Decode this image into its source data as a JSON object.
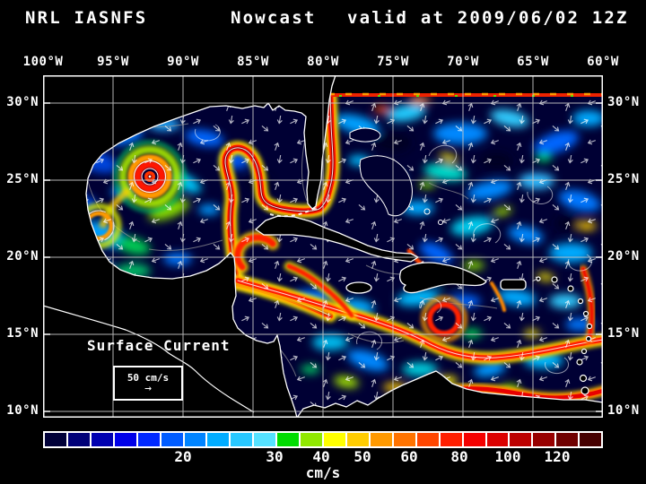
{
  "title": {
    "system": "NRL IASNFS",
    "product": "Nowcast",
    "valid": "valid at 2009/06/02 12Z"
  },
  "axes": {
    "lon_labels": [
      "100°W",
      "95°W",
      "90°W",
      "85°W",
      "80°W",
      "75°W",
      "70°W",
      "65°W",
      "60°W"
    ],
    "lat_labels": [
      "30°N",
      "25°N",
      "20°N",
      "15°N",
      "10°N"
    ]
  },
  "map": {
    "annotation": "Surface Current",
    "scale": {
      "label": "50 cm/s",
      "arrow_icon": "→"
    }
  },
  "colorbar": {
    "unit": "cm/s",
    "tick_labels": [
      "20",
      "30",
      "40",
      "50",
      "60",
      "80",
      "100",
      "120"
    ],
    "tick_values": [
      20,
      30,
      40,
      50,
      60,
      80,
      100,
      120
    ],
    "colors": [
      "#000038",
      "#000078",
      "#0000b0",
      "#0000e8",
      "#0028ff",
      "#005cff",
      "#0084ff",
      "#00acff",
      "#28c8ff",
      "#55e2ff",
      "#00dc00",
      "#90e800",
      "#ffff00",
      "#ffcc00",
      "#ff9900",
      "#ff7300",
      "#ff4600",
      "#ff1e00",
      "#f50000",
      "#dc0000",
      "#bd0000",
      "#980000",
      "#700000",
      "#460000"
    ]
  }
}
